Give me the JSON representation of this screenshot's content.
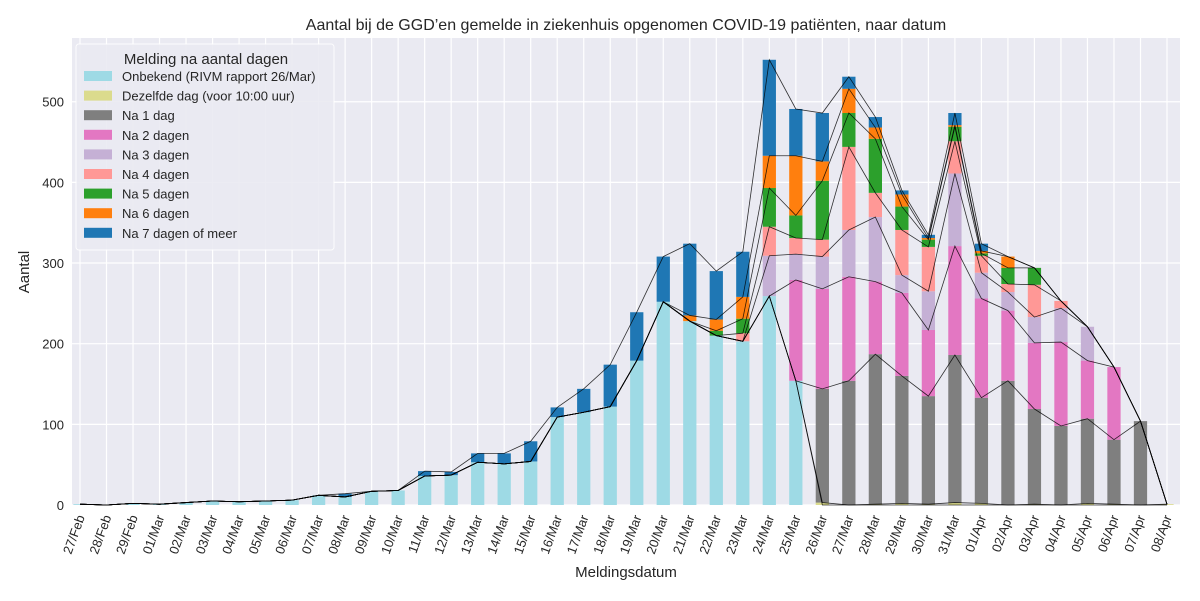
{
  "chart_data": {
    "type": "bar",
    "stacked": true,
    "title": "Aantal bij de GGD’en gemelde in ziekenhuis opgenomen COVID-19 patiënten, naar datum",
    "xlabel": "Meldingsdatum",
    "ylabel": "Aantal",
    "ylim": [
      0,
      579
    ],
    "yticks": [
      0,
      100,
      200,
      300,
      400,
      500
    ],
    "grid": true,
    "legend_title": "Melding na aantal dagen",
    "legend_position": "top-left",
    "categories": [
      "27/Feb",
      "28/Feb",
      "29/Feb",
      "01/Mar",
      "02/Mar",
      "03/Mar",
      "04/Mar",
      "05/Mar",
      "06/Mar",
      "07/Mar",
      "08/Mar",
      "09/Mar",
      "10/Mar",
      "11/Mar",
      "12/Mar",
      "13/Mar",
      "14/Mar",
      "15/Mar",
      "16/Mar",
      "17/Mar",
      "18/Mar",
      "19/Mar",
      "20/Mar",
      "21/Mar",
      "22/Mar",
      "23/Mar",
      "24/Mar",
      "25/Mar",
      "26/Mar",
      "27/Mar",
      "28/Mar",
      "29/Mar",
      "30/Mar",
      "31/Mar",
      "01/Apr",
      "02/Apr",
      "03/Apr",
      "04/Apr",
      "05/Apr",
      "06/Apr",
      "07/Apr",
      "08/Apr"
    ],
    "series": [
      {
        "name": "Onbekend (RIVM rapport 26/Mar)",
        "color": "#9edae5",
        "values": [
          1,
          0,
          2,
          1,
          3,
          5,
          4,
          5,
          6,
          12,
          10,
          17,
          18,
          36,
          37,
          53,
          51,
          54,
          109,
          115,
          122,
          179,
          252,
          228,
          210,
          203,
          259,
          154,
          0,
          0,
          0,
          0,
          0,
          0,
          0,
          0,
          0,
          0,
          0,
          0,
          0,
          0
        ]
      },
      {
        "name": "Dezelfde dag (voor 10:00 uur)",
        "color": "#dbdb8d",
        "values": [
          0,
          0,
          0,
          0,
          0,
          0,
          0,
          0,
          0,
          0,
          0,
          0,
          0,
          0,
          0,
          0,
          0,
          0,
          0,
          0,
          0,
          0,
          0,
          0,
          0,
          0,
          0,
          0,
          3,
          0,
          1,
          2,
          1,
          3,
          2,
          0,
          1,
          0,
          2,
          1,
          0,
          1
        ]
      },
      {
        "name": "Na 1 dag",
        "color": "#7f7f7f",
        "values": [
          0,
          0,
          0,
          0,
          0,
          0,
          0,
          0,
          0,
          0,
          0,
          0,
          0,
          0,
          0,
          0,
          0,
          0,
          0,
          0,
          0,
          0,
          0,
          0,
          0,
          0,
          0,
          0,
          141,
          154,
          186,
          158,
          134,
          183,
          131,
          154,
          118,
          98,
          105,
          80,
          104,
          0
        ]
      },
      {
        "name": "Na 2 dagen",
        "color": "#e377c2",
        "values": [
          0,
          0,
          0,
          0,
          0,
          0,
          0,
          0,
          0,
          0,
          0,
          0,
          0,
          0,
          0,
          0,
          0,
          0,
          0,
          0,
          0,
          0,
          0,
          0,
          0,
          0,
          0,
          125,
          124,
          129,
          90,
          103,
          82,
          135,
          123,
          87,
          82,
          104,
          72,
          90,
          0,
          0
        ]
      },
      {
        "name": "Na 3 dagen",
        "color": "#c5b0d5",
        "values": [
          0,
          0,
          0,
          0,
          0,
          0,
          0,
          0,
          0,
          0,
          0,
          0,
          0,
          0,
          0,
          0,
          0,
          0,
          0,
          0,
          0,
          0,
          0,
          0,
          0,
          0,
          50,
          32,
          40,
          58,
          80,
          22,
          48,
          90,
          32,
          23,
          32,
          42,
          42,
          0,
          0,
          0
        ]
      },
      {
        "name": "Na 4 dagen",
        "color": "#ff9896",
        "values": [
          0,
          0,
          0,
          0,
          0,
          0,
          0,
          0,
          0,
          0,
          0,
          0,
          0,
          0,
          0,
          0,
          0,
          0,
          0,
          0,
          0,
          0,
          0,
          0,
          0,
          10,
          36,
          20,
          21,
          103,
          30,
          56,
          55,
          40,
          21,
          10,
          40,
          9,
          0,
          0,
          0,
          0
        ]
      },
      {
        "name": "Na 5 dagen",
        "color": "#2ca02c",
        "values": [
          0,
          0,
          0,
          0,
          0,
          0,
          0,
          0,
          0,
          0,
          0,
          0,
          0,
          0,
          0,
          0,
          0,
          0,
          0,
          0,
          0,
          0,
          0,
          0,
          6,
          18,
          48,
          28,
          73,
          42,
          67,
          29,
          9,
          18,
          3,
          20,
          21,
          0,
          0,
          0,
          0,
          0
        ]
      },
      {
        "name": "Na 6 dagen",
        "color": "#ff7f0e",
        "values": [
          0,
          0,
          0,
          0,
          0,
          0,
          0,
          0,
          0,
          0,
          0,
          0,
          0,
          0,
          0,
          0,
          0,
          0,
          0,
          0,
          0,
          0,
          0,
          7,
          14,
          27,
          40,
          74,
          24,
          30,
          14,
          15,
          2,
          2,
          3,
          14,
          0,
          0,
          0,
          0,
          0,
          0
        ]
      },
      {
        "name": "Na 7 dagen of meer",
        "color": "#1f77b4",
        "values": [
          0,
          0,
          0,
          0,
          0,
          0,
          0,
          0,
          0,
          0,
          4,
          0,
          0,
          6,
          4,
          11,
          13,
          25,
          12,
          29,
          52,
          60,
          56,
          89,
          60,
          56,
          119,
          58,
          60,
          15,
          13,
          5,
          4,
          15,
          9,
          0,
          0,
          0,
          0,
          0,
          0,
          0
        ]
      }
    ]
  }
}
